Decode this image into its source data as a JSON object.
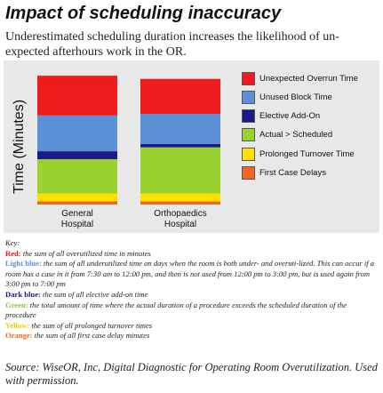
{
  "header": {
    "title": "Impact of scheduling inaccuracy",
    "subtitle": "Underestimated scheduling duration increases the likelihood of un-expected afterhours work in the OR."
  },
  "chart_data": {
    "type": "bar",
    "stacked": true,
    "ylabel": "Time (Minutes)",
    "categories": [
      "General Hospital",
      "Orthopaedics Hospital"
    ],
    "series": [
      {
        "name": "First Case Delays",
        "color": "#f26522",
        "values": [
          4,
          4
        ]
      },
      {
        "name": "Prolonged Turnover Time",
        "color": "#ffe000",
        "values": [
          10,
          10
        ]
      },
      {
        "name": "Actual > Scheduled",
        "color": "#9bd12e",
        "values": [
          43,
          58
        ]
      },
      {
        "name": "Elective Add-On",
        "color": "#1a1a8c",
        "values": [
          10,
          4
        ]
      },
      {
        "name": "Unused Block Time",
        "color": "#5b8fd6",
        "values": [
          45,
          38
        ]
      },
      {
        "name": "Unexpected Overrun Time",
        "color": "#ee1c1c",
        "values": [
          50,
          44
        ]
      }
    ],
    "ylim": [
      0,
      170
    ],
    "legend_position": "right",
    "grid": false
  },
  "legend": [
    {
      "label": "Unexpected Overrun Time",
      "color": "#ee1c1c"
    },
    {
      "label": "Unused Block Time",
      "color": "#5b8fd6"
    },
    {
      "label": "Elective Add-On",
      "color": "#1a1a8c"
    },
    {
      "label": "Actual > Scheduled",
      "color": "#9bd12e"
    },
    {
      "label": "Prolonged Turnover Time",
      "color": "#ffe000"
    },
    {
      "label": "First Case Delays",
      "color": "#f26522"
    }
  ],
  "key": {
    "heading": "Key:",
    "items": [
      {
        "name": "Red:",
        "color": "#e31b1b",
        "text": " the sum of all overutilized time in minutes"
      },
      {
        "name": "Light blue:",
        "color": "#5b8fd6",
        "text": " the sum of all underutilized time on days when the room is both under- and overuti-lized. This can occur if a room has a case in it from 7:30 am to 12:00 pm, and then is not used from 12:00 pm to 3:00 pm, but is used again from 3:00 pm to 7:00 pm"
      },
      {
        "name": "Dark blue:",
        "color": "#1a1a8c",
        "text": " the sum of all elective add-on time"
      },
      {
        "name": "Green:",
        "color": "#8cc63f",
        "text": " the total amount of time where the actual duration of a procedure exceeds the scheduled duration of the procedure"
      },
      {
        "name": "Yellow:",
        "color": "#e8d000",
        "text": " the sum of all prolonged turnover times"
      },
      {
        "name": "Orange:",
        "color": "#f26522",
        "text": " the sum of all first case delay minutes"
      }
    ]
  },
  "source": "Source: WiseOR, Inc, Digital Diagnostic for Operating Room Overutilization. Used with permission."
}
